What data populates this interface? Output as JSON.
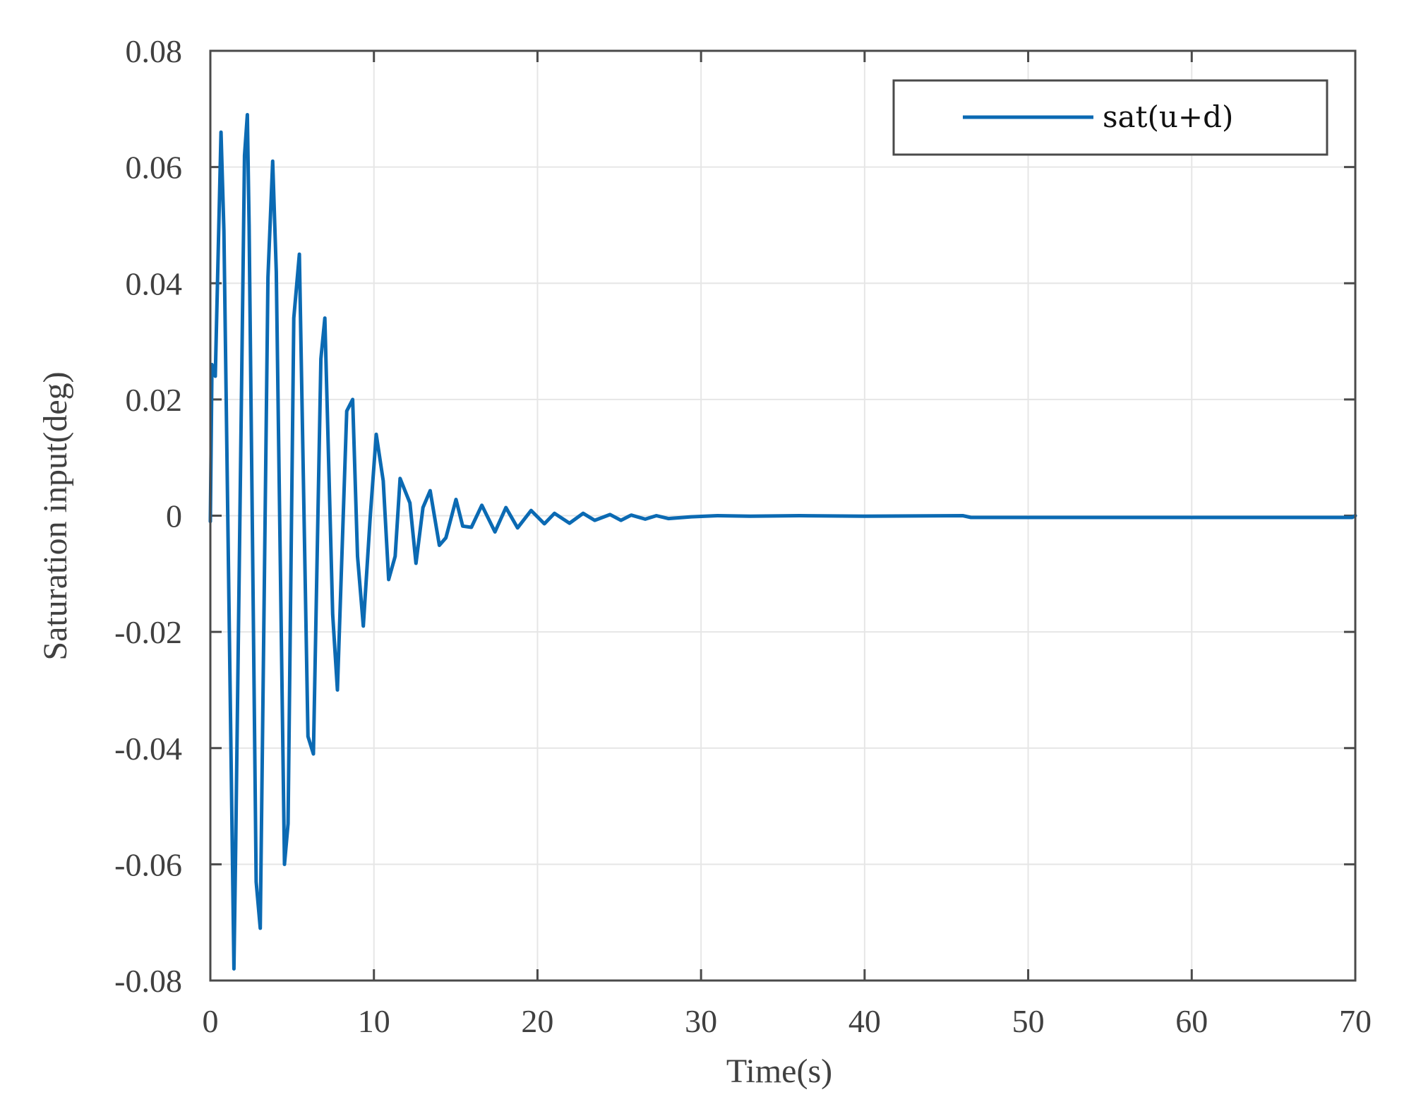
{
  "chart_data": {
    "type": "line",
    "title": "",
    "xlabel": "Time(s)",
    "ylabel": "Saturation input(deg)",
    "xlim": [
      0,
      70
    ],
    "ylim": [
      -0.08,
      0.08
    ],
    "xticks": [
      0,
      10,
      20,
      30,
      40,
      50,
      60,
      70
    ],
    "xtick_labels": [
      "0",
      "10",
      "20",
      "30",
      "40",
      "50",
      "60",
      "70"
    ],
    "yticks": [
      -0.08,
      -0.06,
      -0.04,
      -0.02,
      0,
      0.02,
      0.04,
      0.06,
      0.08
    ],
    "ytick_labels": [
      "-0.08",
      "-0.06",
      "-0.04",
      "-0.02",
      "0",
      "0.02",
      "0.04",
      "0.06",
      "0.08"
    ],
    "grid": true,
    "legend_position": "upper right",
    "series": [
      {
        "name": "sat(u+d)",
        "color": "#0b6ab3",
        "x": [
          0,
          0.1,
          0.3,
          0.65,
          0.83,
          1.44,
          1.55,
          2.09,
          2.26,
          2.37,
          2.8,
          3.05,
          3.52,
          3.81,
          4.03,
          4.53,
          4.75,
          5.1,
          5.44,
          5.97,
          6.3,
          6.76,
          7.0,
          7.48,
          7.77,
          8.34,
          8.7,
          9.0,
          9.35,
          9.78,
          10.14,
          10.57,
          10.9,
          11.3,
          11.6,
          12.2,
          12.57,
          13.0,
          13.44,
          14.0,
          14.4,
          15.02,
          15.43,
          15.96,
          16.6,
          17.4,
          18.07,
          18.78,
          19.61,
          20.42,
          21.04,
          21.96,
          22.79,
          23.5,
          24.44,
          25.1,
          25.73,
          26.59,
          27.27,
          28.0,
          29.4,
          31.0,
          33.0,
          36.0,
          40.0,
          46.0,
          46.5,
          55.0,
          65.0,
          69.8,
          70.0
        ],
        "values": [
          -0.001,
          0.026,
          0.024,
          0.066,
          0.049,
          -0.078,
          -0.057,
          0.062,
          0.069,
          0.05,
          -0.063,
          -0.071,
          0.041,
          0.061,
          0.042,
          -0.06,
          -0.053,
          0.034,
          0.045,
          -0.038,
          -0.041,
          0.027,
          0.034,
          -0.017,
          -0.03,
          0.018,
          0.02,
          -0.007,
          -0.019,
          0.0,
          0.014,
          0.006,
          -0.011,
          -0.007,
          0.0064,
          0.0022,
          -0.0082,
          0.0014,
          0.0043,
          -0.0051,
          -0.0038,
          0.0028,
          -0.0018,
          -0.002,
          0.0018,
          -0.0028,
          0.0014,
          -0.0021,
          0.0009,
          -0.0014,
          0.0004,
          -0.0013,
          0.0004,
          -0.0008,
          0.0002,
          -0.0008,
          0.0001,
          -0.0006,
          0.0,
          -0.0005,
          -0.0002,
          0.0,
          -0.0001,
          0.0,
          -0.0001,
          0.0,
          -0.0003,
          -0.0003,
          -0.0003,
          -0.0003,
          0.0
        ]
      }
    ]
  },
  "legend": {
    "label": "sat(u+d)"
  }
}
